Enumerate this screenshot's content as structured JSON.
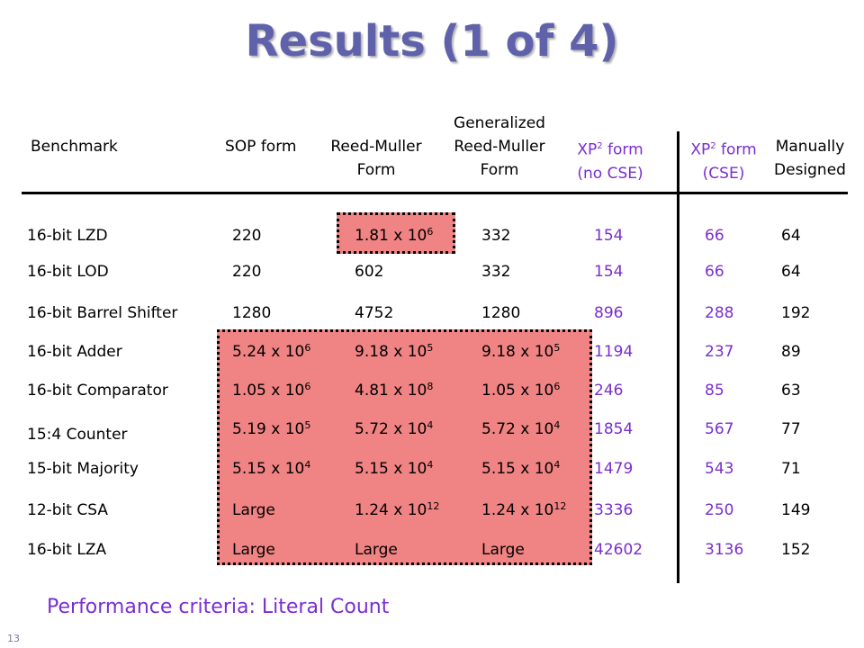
{
  "title": "Results (1 of 4)",
  "headers": {
    "benchmark": "Benchmark",
    "sop": "SOP form",
    "rm_line1": "Reed-Muller",
    "rm_line2": "Form",
    "grm_line1": "Generalized",
    "grm_line2": "Reed-Muller",
    "grm_line3": "Form",
    "xp_nocse_line1": "XP",
    "xp_nocse_sup": "2",
    "xp_nocse_line1b": " form",
    "xp_nocse_line2": "(no CSE)",
    "xp_cse_line1": "XP",
    "xp_cse_sup": "2",
    "xp_cse_line1b": " form",
    "xp_cse_line2": "(CSE)",
    "manual_line1": "Manually",
    "manual_line2": "Designed"
  },
  "rows": [
    {
      "name": "16-bit LZD",
      "sop": [
        "220",
        ""
      ],
      "rm": [
        "1.81 x 10",
        "6"
      ],
      "grm": [
        "332",
        ""
      ],
      "xp_nocse": "154",
      "xp_cse": "66",
      "manual": "64"
    },
    {
      "name": "16-bit LOD",
      "sop": [
        "220",
        ""
      ],
      "rm": [
        "602",
        ""
      ],
      "grm": [
        "332",
        ""
      ],
      "xp_nocse": "154",
      "xp_cse": "66",
      "manual": "64"
    },
    {
      "name": "16-bit Barrel Shifter",
      "sop": [
        "1280",
        ""
      ],
      "rm": [
        "4752",
        ""
      ],
      "grm": [
        "1280",
        ""
      ],
      "xp_nocse": "896",
      "xp_cse": "288",
      "manual": "192"
    },
    {
      "name": "16-bit Adder",
      "sop": [
        "5.24 x 10",
        "6"
      ],
      "rm": [
        "9.18 x 10",
        "5"
      ],
      "grm": [
        "9.18 x 10",
        "5"
      ],
      "xp_nocse": "1194",
      "xp_cse": "237",
      "manual": "89"
    },
    {
      "name": "16-bit Comparator",
      "sop": [
        "1.05 x 10",
        "6"
      ],
      "rm": [
        "4.81 x 10",
        "8"
      ],
      "grm": [
        "1.05 x 10",
        "6"
      ],
      "xp_nocse": "246",
      "xp_cse": "85",
      "manual": "63"
    },
    {
      "name": "15:4 Counter",
      "sop": [
        "5.19 x 10",
        "5"
      ],
      "rm": [
        "5.72 x 10",
        "4"
      ],
      "grm": [
        "5.72 x 10",
        "4"
      ],
      "xp_nocse": "1854",
      "xp_cse": "567",
      "manual": "77"
    },
    {
      "name": "15-bit Majority",
      "sop": [
        "5.15 x 10",
        "4"
      ],
      "rm": [
        "5.15 x 10",
        "4"
      ],
      "grm": [
        "5.15 x 10",
        "4"
      ],
      "xp_nocse": "1479",
      "xp_cse": "543",
      "manual": "71"
    },
    {
      "name": "12-bit CSA",
      "sop": [
        "Large",
        ""
      ],
      "rm": [
        "1.24 x 10",
        "12"
      ],
      "grm": [
        "1.24 x 10",
        "12"
      ],
      "xp_nocse": "3336",
      "xp_cse": "250",
      "manual": "149"
    },
    {
      "name": "16-bit LZA",
      "sop": [
        "Large",
        ""
      ],
      "rm": [
        "Large",
        ""
      ],
      "grm": [
        "Large",
        ""
      ],
      "xp_nocse": "42602",
      "xp_cse": "3136",
      "manual": "152"
    }
  ],
  "footer": "Performance criteria: Literal Count",
  "page_number": "13",
  "colors": {
    "title": "#5f62ab",
    "accent": "#7a2ecf",
    "highlight": "#f08383"
  }
}
